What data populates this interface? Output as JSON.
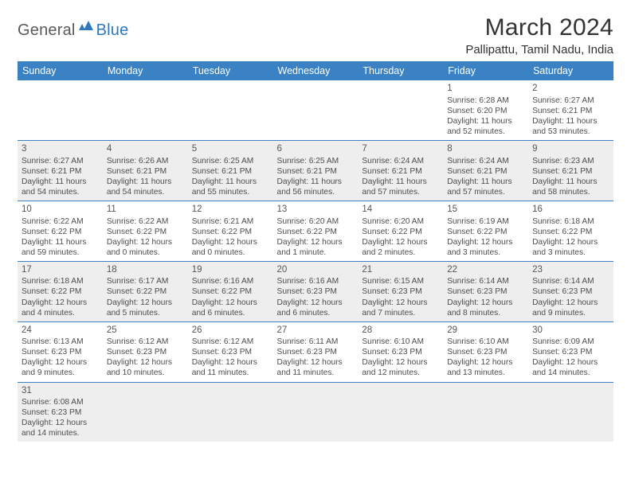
{
  "brand": {
    "part1": "General",
    "part2": "Blue"
  },
  "title": "March 2024",
  "location": "Pallipattu, Tamil Nadu, India",
  "colors": {
    "header_bg": "#3a82c4",
    "header_text": "#ffffff",
    "shade_bg": "#eeeeee",
    "cell_border": "#3a82c4",
    "body_text": "#4d4d4d",
    "title_text": "#333333",
    "logo_gray": "#5a5a5a",
    "logo_blue": "#2f78bf"
  },
  "typography": {
    "month_title_fontsize": 30,
    "location_fontsize": 15,
    "header_cell_fontsize": 12.5,
    "body_cell_fontsize": 10.2,
    "daynum_fontsize": 11.5
  },
  "weekdays": [
    "Sunday",
    "Monday",
    "Tuesday",
    "Wednesday",
    "Thursday",
    "Friday",
    "Saturday"
  ],
  "weeks": [
    [
      null,
      null,
      null,
      null,
      null,
      {
        "n": "1",
        "sr": "Sunrise: 6:28 AM",
        "ss": "Sunset: 6:20 PM",
        "d1": "Daylight: 11 hours",
        "d2": "and 52 minutes."
      },
      {
        "n": "2",
        "sr": "Sunrise: 6:27 AM",
        "ss": "Sunset: 6:21 PM",
        "d1": "Daylight: 11 hours",
        "d2": "and 53 minutes."
      }
    ],
    [
      {
        "n": "3",
        "sr": "Sunrise: 6:27 AM",
        "ss": "Sunset: 6:21 PM",
        "d1": "Daylight: 11 hours",
        "d2": "and 54 minutes."
      },
      {
        "n": "4",
        "sr": "Sunrise: 6:26 AM",
        "ss": "Sunset: 6:21 PM",
        "d1": "Daylight: 11 hours",
        "d2": "and 54 minutes."
      },
      {
        "n": "5",
        "sr": "Sunrise: 6:25 AM",
        "ss": "Sunset: 6:21 PM",
        "d1": "Daylight: 11 hours",
        "d2": "and 55 minutes."
      },
      {
        "n": "6",
        "sr": "Sunrise: 6:25 AM",
        "ss": "Sunset: 6:21 PM",
        "d1": "Daylight: 11 hours",
        "d2": "and 56 minutes."
      },
      {
        "n": "7",
        "sr": "Sunrise: 6:24 AM",
        "ss": "Sunset: 6:21 PM",
        "d1": "Daylight: 11 hours",
        "d2": "and 57 minutes."
      },
      {
        "n": "8",
        "sr": "Sunrise: 6:24 AM",
        "ss": "Sunset: 6:21 PM",
        "d1": "Daylight: 11 hours",
        "d2": "and 57 minutes."
      },
      {
        "n": "9",
        "sr": "Sunrise: 6:23 AM",
        "ss": "Sunset: 6:21 PM",
        "d1": "Daylight: 11 hours",
        "d2": "and 58 minutes."
      }
    ],
    [
      {
        "n": "10",
        "sr": "Sunrise: 6:22 AM",
        "ss": "Sunset: 6:22 PM",
        "d1": "Daylight: 11 hours",
        "d2": "and 59 minutes."
      },
      {
        "n": "11",
        "sr": "Sunrise: 6:22 AM",
        "ss": "Sunset: 6:22 PM",
        "d1": "Daylight: 12 hours",
        "d2": "and 0 minutes."
      },
      {
        "n": "12",
        "sr": "Sunrise: 6:21 AM",
        "ss": "Sunset: 6:22 PM",
        "d1": "Daylight: 12 hours",
        "d2": "and 0 minutes."
      },
      {
        "n": "13",
        "sr": "Sunrise: 6:20 AM",
        "ss": "Sunset: 6:22 PM",
        "d1": "Daylight: 12 hours",
        "d2": "and 1 minute."
      },
      {
        "n": "14",
        "sr": "Sunrise: 6:20 AM",
        "ss": "Sunset: 6:22 PM",
        "d1": "Daylight: 12 hours",
        "d2": "and 2 minutes."
      },
      {
        "n": "15",
        "sr": "Sunrise: 6:19 AM",
        "ss": "Sunset: 6:22 PM",
        "d1": "Daylight: 12 hours",
        "d2": "and 3 minutes."
      },
      {
        "n": "16",
        "sr": "Sunrise: 6:18 AM",
        "ss": "Sunset: 6:22 PM",
        "d1": "Daylight: 12 hours",
        "d2": "and 3 minutes."
      }
    ],
    [
      {
        "n": "17",
        "sr": "Sunrise: 6:18 AM",
        "ss": "Sunset: 6:22 PM",
        "d1": "Daylight: 12 hours",
        "d2": "and 4 minutes."
      },
      {
        "n": "18",
        "sr": "Sunrise: 6:17 AM",
        "ss": "Sunset: 6:22 PM",
        "d1": "Daylight: 12 hours",
        "d2": "and 5 minutes."
      },
      {
        "n": "19",
        "sr": "Sunrise: 6:16 AM",
        "ss": "Sunset: 6:22 PM",
        "d1": "Daylight: 12 hours",
        "d2": "and 6 minutes."
      },
      {
        "n": "20",
        "sr": "Sunrise: 6:16 AM",
        "ss": "Sunset: 6:23 PM",
        "d1": "Daylight: 12 hours",
        "d2": "and 6 minutes."
      },
      {
        "n": "21",
        "sr": "Sunrise: 6:15 AM",
        "ss": "Sunset: 6:23 PM",
        "d1": "Daylight: 12 hours",
        "d2": "and 7 minutes."
      },
      {
        "n": "22",
        "sr": "Sunrise: 6:14 AM",
        "ss": "Sunset: 6:23 PM",
        "d1": "Daylight: 12 hours",
        "d2": "and 8 minutes."
      },
      {
        "n": "23",
        "sr": "Sunrise: 6:14 AM",
        "ss": "Sunset: 6:23 PM",
        "d1": "Daylight: 12 hours",
        "d2": "and 9 minutes."
      }
    ],
    [
      {
        "n": "24",
        "sr": "Sunrise: 6:13 AM",
        "ss": "Sunset: 6:23 PM",
        "d1": "Daylight: 12 hours",
        "d2": "and 9 minutes."
      },
      {
        "n": "25",
        "sr": "Sunrise: 6:12 AM",
        "ss": "Sunset: 6:23 PM",
        "d1": "Daylight: 12 hours",
        "d2": "and 10 minutes."
      },
      {
        "n": "26",
        "sr": "Sunrise: 6:12 AM",
        "ss": "Sunset: 6:23 PM",
        "d1": "Daylight: 12 hours",
        "d2": "and 11 minutes."
      },
      {
        "n": "27",
        "sr": "Sunrise: 6:11 AM",
        "ss": "Sunset: 6:23 PM",
        "d1": "Daylight: 12 hours",
        "d2": "and 11 minutes."
      },
      {
        "n": "28",
        "sr": "Sunrise: 6:10 AM",
        "ss": "Sunset: 6:23 PM",
        "d1": "Daylight: 12 hours",
        "d2": "and 12 minutes."
      },
      {
        "n": "29",
        "sr": "Sunrise: 6:10 AM",
        "ss": "Sunset: 6:23 PM",
        "d1": "Daylight: 12 hours",
        "d2": "and 13 minutes."
      },
      {
        "n": "30",
        "sr": "Sunrise: 6:09 AM",
        "ss": "Sunset: 6:23 PM",
        "d1": "Daylight: 12 hours",
        "d2": "and 14 minutes."
      }
    ],
    [
      {
        "n": "31",
        "sr": "Sunrise: 6:08 AM",
        "ss": "Sunset: 6:23 PM",
        "d1": "Daylight: 12 hours",
        "d2": "and 14 minutes."
      },
      null,
      null,
      null,
      null,
      null,
      null
    ]
  ]
}
